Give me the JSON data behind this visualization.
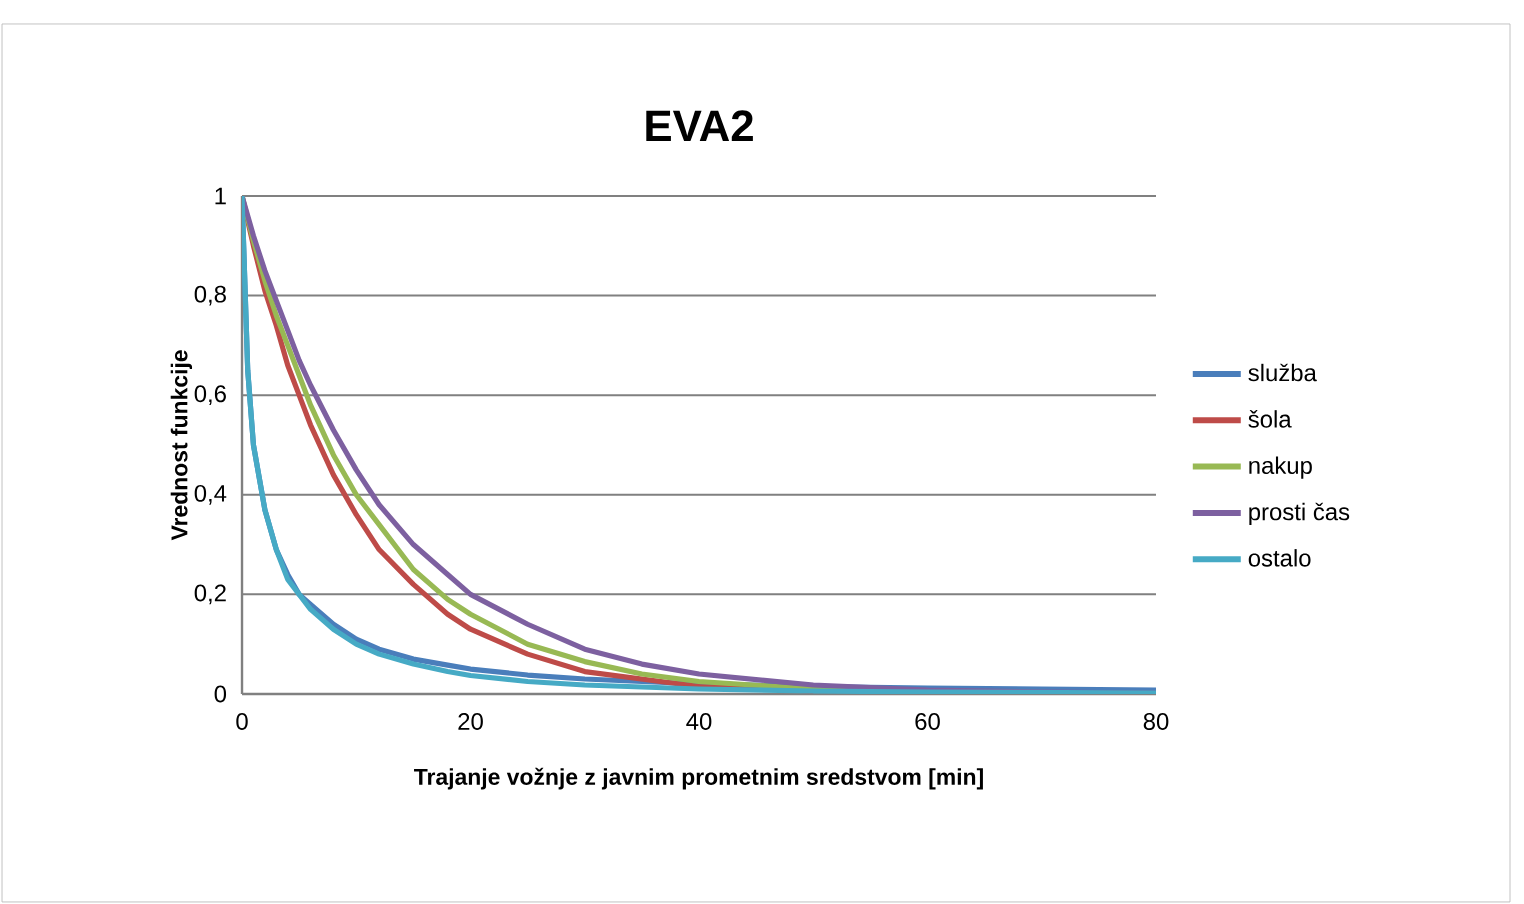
{
  "chart_data": {
    "type": "line",
    "title": "EVA2",
    "xlabel": "Trajanje vožnje z javnim prometnim sredstvom [min]",
    "ylabel": "Vrednost funkcije",
    "xlim": [
      0,
      80
    ],
    "xticks": [
      0,
      20,
      40,
      60,
      80
    ],
    "ylim": [
      0,
      1
    ],
    "yticks": [
      0,
      {
        "value": 0.2,
        "label": "0,2"
      },
      {
        "value": 0.4,
        "label": "0,4"
      },
      {
        "value": 0.6,
        "label": "0,6"
      },
      {
        "value": 0.8,
        "label": "0,8"
      },
      1
    ],
    "grid": "y",
    "legend": "right",
    "marker": "none",
    "line_style": "solid",
    "series": [
      {
        "name": "služba",
        "color": "#4a7ebb",
        "x": [
          0,
          0.5,
          1,
          2,
          3,
          4,
          5,
          6,
          8,
          10,
          12,
          15,
          18,
          20,
          25,
          30,
          40,
          50,
          60,
          70,
          80
        ],
        "values": [
          1,
          0.65,
          0.5,
          0.37,
          0.29,
          0.24,
          0.2,
          0.18,
          0.14,
          0.11,
          0.09,
          0.07,
          0.058,
          0.05,
          0.038,
          0.03,
          0.02,
          0.015,
          0.012,
          0.01,
          0.008
        ]
      },
      {
        "name": "šola",
        "color": "#be4b48",
        "x": [
          0,
          1,
          2,
          3,
          4,
          5,
          6,
          8,
          10,
          12,
          15,
          18,
          20,
          25,
          30,
          35,
          40,
          50
        ],
        "values": [
          1,
          0.9,
          0.81,
          0.74,
          0.66,
          0.6,
          0.54,
          0.44,
          0.36,
          0.29,
          0.22,
          0.16,
          0.13,
          0.08,
          0.045,
          0.03,
          0.015,
          0.006
        ]
      },
      {
        "name": "nakup",
        "color": "#98b954",
        "x": [
          0,
          1,
          2,
          3,
          4,
          5,
          6,
          8,
          10,
          12,
          15,
          18,
          20,
          25,
          30,
          35,
          40,
          50,
          60
        ],
        "values": [
          1,
          0.91,
          0.83,
          0.76,
          0.7,
          0.64,
          0.58,
          0.48,
          0.4,
          0.34,
          0.25,
          0.19,
          0.16,
          0.1,
          0.065,
          0.04,
          0.025,
          0.01,
          0.004
        ]
      },
      {
        "name": "prosti čas",
        "color": "#7d60a0",
        "x": [
          0,
          1,
          2,
          3,
          4,
          5,
          6,
          8,
          10,
          12,
          15,
          18,
          20,
          25,
          30,
          35,
          40,
          50,
          60,
          70,
          80
        ],
        "values": [
          1,
          0.92,
          0.85,
          0.79,
          0.73,
          0.67,
          0.62,
          0.53,
          0.45,
          0.38,
          0.3,
          0.24,
          0.2,
          0.14,
          0.09,
          0.06,
          0.04,
          0.018,
          0.008,
          0.004,
          0.002
        ]
      },
      {
        "name": "ostalo",
        "color": "#46aac5",
        "x": [
          0,
          0.5,
          1,
          2,
          3,
          4,
          5,
          6,
          8,
          10,
          12,
          15,
          18,
          20,
          25,
          30,
          40,
          50,
          60,
          70,
          80
        ],
        "values": [
          1,
          0.65,
          0.5,
          0.37,
          0.29,
          0.23,
          0.2,
          0.17,
          0.13,
          0.1,
          0.08,
          0.06,
          0.045,
          0.037,
          0.025,
          0.018,
          0.01,
          0.006,
          0.004,
          0.003,
          0.002
        ]
      }
    ]
  }
}
